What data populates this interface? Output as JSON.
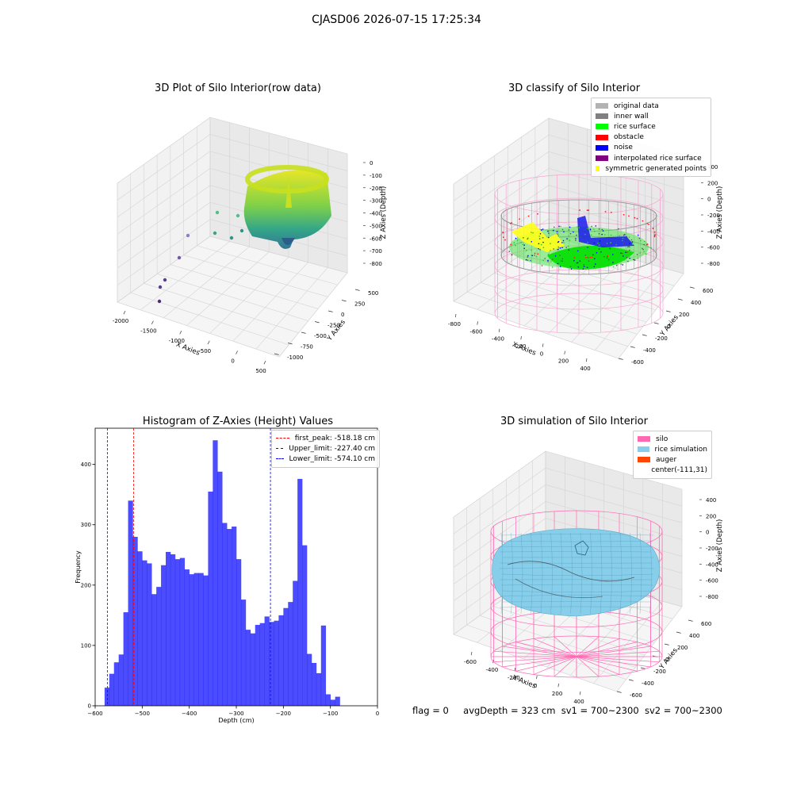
{
  "figure": {
    "title": "CJASD06 2026-07-15 17:25:34"
  },
  "panels": {
    "raw": {
      "title": "3D Plot of Silo Interior(row data)",
      "xlabel": "X Axies",
      "ylabel": "Y Axies",
      "zlabel": "Z Axies (Depth)",
      "x_ticks": [
        "-2000",
        "-1500",
        "-1000",
        "-500",
        "0",
        "500"
      ],
      "y_ticks": [
        "500",
        "250",
        "0",
        "-250",
        "-500",
        "-750",
        "-1000"
      ],
      "z_ticks": [
        "0",
        "-100",
        "-200",
        "-300",
        "-400",
        "-500",
        "-600",
        "-700",
        "-800"
      ]
    },
    "classify": {
      "title": "3D classify of Silo Interior",
      "xlabel": "X Axies",
      "ylabel": "Y Axies",
      "zlabel": "Z Axies (Depth)",
      "x_ticks": [
        "-800",
        "-600",
        "-400",
        "-200",
        "0",
        "200",
        "400"
      ],
      "y_ticks": [
        "600",
        "400",
        "200",
        "0",
        "-200",
        "-400",
        "-600"
      ],
      "z_ticks": [
        "400",
        "200",
        "0",
        "-200",
        "-400",
        "-600",
        "-800"
      ],
      "legend": [
        {
          "label": "original data",
          "color": "#b3b3b3"
        },
        {
          "label": "inner wall",
          "color": "#808080"
        },
        {
          "label": "rice surface",
          "color": "#00ff00"
        },
        {
          "label": "obstacle",
          "color": "#ff0000"
        },
        {
          "label": "noise",
          "color": "#0000ff"
        },
        {
          "label": "interpolated rice surface",
          "color": "#800080"
        },
        {
          "label": "symmetric generated points",
          "color": "#ffff00"
        }
      ]
    },
    "simulation": {
      "title": "3D simulation of Silo Interior",
      "xlabel": "X Axies",
      "ylabel": "Y Axies",
      "zlabel": "Z Axies (Depth)",
      "x_ticks": [
        "-600",
        "-400",
        "-200",
        "0",
        "200",
        "400"
      ],
      "y_ticks": [
        "600",
        "400",
        "200",
        "0",
        "-200",
        "-400",
        "-600"
      ],
      "z_ticks": [
        "400",
        "200",
        "0",
        "-200",
        "-400",
        "-600",
        "-800"
      ],
      "legend": [
        {
          "label": "silo",
          "color": "#ff69b4"
        },
        {
          "label": "rice simulation",
          "color": "#87ceeb"
        },
        {
          "label": "auger",
          "color": "#ff4500"
        },
        {
          "label": "center(-111,31)",
          "color": ""
        }
      ]
    }
  },
  "chart_data": {
    "type": "bar",
    "title": "Histogram of Z-Axies (Height) Values",
    "xlabel": "Depth (cm)",
    "ylabel": "Frequency",
    "xlim": [
      -600,
      0
    ],
    "ylim": [
      0,
      460
    ],
    "bar_color": "#0000ff",
    "bins": {
      "start": -580,
      "width": 10
    },
    "values": [
      30,
      53,
      72,
      85,
      155,
      340,
      280,
      256,
      241,
      236,
      185,
      197,
      233,
      255,
      251,
      243,
      245,
      226,
      218,
      220,
      220,
      216,
      355,
      440,
      388,
      303,
      293,
      297,
      243,
      176,
      126,
      120,
      134,
      137,
      148,
      139,
      141,
      150,
      162,
      172,
      207,
      376,
      266,
      86,
      71,
      54,
      133,
      19,
      10,
      15
    ],
    "x_ticks": [
      -600,
      -500,
      -400,
      -300,
      -200,
      -100,
      0
    ],
    "y_ticks": [
      0,
      100,
      200,
      300,
      400
    ],
    "lines": [
      {
        "label": "first_peak: -518.18 cm",
        "x": -518.18,
        "color": "#ff0000"
      },
      {
        "label": "Upper_limit: -227.40 cm",
        "x": -227.4,
        "color": "#0000ff"
      },
      {
        "label": "Lower_limit: -574.10 cm",
        "x": -574.1,
        "color": "#0000ff"
      }
    ]
  },
  "footer": {
    "flag": "flag = 0",
    "avg_depth": "avgDepth = 323 cm",
    "sv1": "sv1 = 700~2300",
    "sv2": "sv2 = 700~2300"
  }
}
